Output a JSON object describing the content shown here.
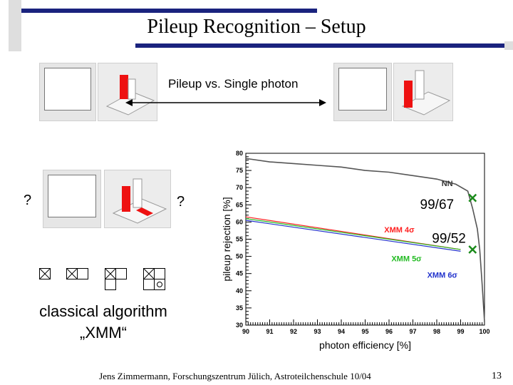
{
  "title": "Pileup Recognition – Setup",
  "pileup_vs_single": "Pileup vs. Single photon",
  "question_left": "?",
  "question_right": "?",
  "classical_line1": "classical algorithm",
  "classical_line2": "„XMM“",
  "footer": "Jens Zimmermann, Forschungszentrum Jülich, Astroteilchenschule 10/04",
  "page_number": "13",
  "colors": {
    "title_bar": "#1a237e",
    "accent_square": "#dedede",
    "nn": "#555555",
    "xmm4": "#ff2020",
    "xmm5": "#22bb22",
    "xmm6": "#2233cc",
    "marker": "#1a8a1a"
  },
  "chart_data": {
    "type": "line",
    "xlabel": "photon efficiency [%]",
    "ylabel": "pileup rejection [%]",
    "xlim": [
      90,
      100
    ],
    "ylim": [
      30,
      80
    ],
    "x_ticks": [
      "90",
      "91",
      "92",
      "93",
      "94",
      "95",
      "96",
      "97",
      "98",
      "99",
      "100"
    ],
    "y_ticks": [
      "30",
      "35",
      "40",
      "45",
      "50",
      "55",
      "60",
      "65",
      "70",
      "75",
      "80"
    ],
    "grid": false,
    "series": [
      {
        "name": "NN",
        "color": "#555555",
        "x": [
          90.0,
          91.0,
          92.0,
          93.0,
          94.0,
          95.0,
          96.0,
          97.0,
          98.0,
          98.8,
          99.3,
          99.5,
          99.7,
          99.8,
          99.9,
          100.0
        ],
        "y": [
          78.5,
          77.5,
          77.0,
          76.5,
          76.0,
          75.0,
          74.5,
          73.5,
          72.5,
          71.0,
          69.0,
          64.0,
          58.0,
          52.0,
          42.0,
          31.0
        ]
      },
      {
        "name": "XMM 4σ",
        "color": "#ff2020",
        "x": [
          90.0,
          99.0
        ],
        "y": [
          61.5,
          52.0
        ]
      },
      {
        "name": "XMM 5σ",
        "color": "#22bb22",
        "x": [
          90.0,
          99.0
        ],
        "y": [
          61.0,
          52.0
        ]
      },
      {
        "name": "XMM 6σ",
        "color": "#2233cc",
        "x": [
          90.0,
          99.0
        ],
        "y": [
          60.5,
          51.5
        ]
      }
    ],
    "annotations": [
      {
        "text": "NN"
      },
      {
        "text": "XMM 4σ"
      },
      {
        "text": "XMM 5σ"
      },
      {
        "text": "XMM 6σ"
      },
      {
        "text": "99/67"
      },
      {
        "text": "99/52"
      }
    ],
    "markers": [
      {
        "x": 99.5,
        "y": 67
      },
      {
        "x": 99.5,
        "y": 52
      }
    ]
  }
}
